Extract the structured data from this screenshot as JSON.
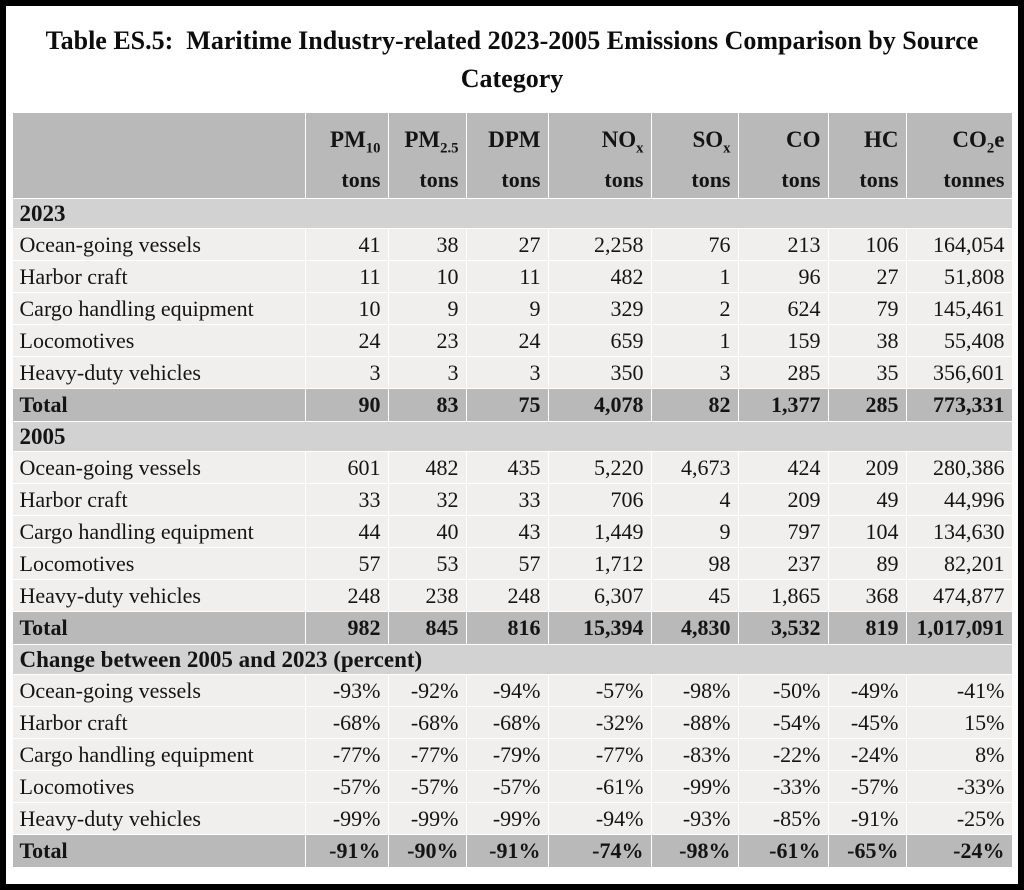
{
  "title": "Table ES.5:  Maritime Industry-related 2023-2005 Emissions Comparison by Source Category",
  "colors": {
    "header_band": "#b9b9b9",
    "section_band": "#d2d2d2",
    "data_band": "#f0efee",
    "total_band": "#b9b9b9",
    "frame_border": "#000000",
    "page_background": "#ffffff",
    "text": "#141414"
  },
  "columns": [
    {
      "main": "PM",
      "sub": "10",
      "suffix": "",
      "unit": "tons"
    },
    {
      "main": "PM",
      "sub": "2.5",
      "suffix": "",
      "unit": "tons"
    },
    {
      "main": "DPM",
      "sub": "",
      "suffix": "",
      "unit": "tons"
    },
    {
      "main": "NO",
      "sub": "x",
      "suffix": "",
      "unit": "tons"
    },
    {
      "main": "SO",
      "sub": "x",
      "suffix": "",
      "unit": "tons"
    },
    {
      "main": "CO",
      "sub": "",
      "suffix": "",
      "unit": "tons"
    },
    {
      "main": "HC",
      "sub": "",
      "suffix": "",
      "unit": "tons"
    },
    {
      "main": "CO",
      "sub": "2",
      "suffix": "e",
      "unit": "tonnes"
    }
  ],
  "sections": [
    {
      "header": "2023",
      "rows": [
        {
          "label": "Ocean-going vessels",
          "values": [
            "41",
            "38",
            "27",
            "2,258",
            "76",
            "213",
            "106",
            "164,054"
          ]
        },
        {
          "label": "Harbor craft",
          "values": [
            "11",
            "10",
            "11",
            "482",
            "1",
            "96",
            "27",
            "51,808"
          ]
        },
        {
          "label": "Cargo handling equipment",
          "values": [
            "10",
            "9",
            "9",
            "329",
            "2",
            "624",
            "79",
            "145,461"
          ]
        },
        {
          "label": "Locomotives",
          "values": [
            "24",
            "23",
            "24",
            "659",
            "1",
            "159",
            "38",
            "55,408"
          ]
        },
        {
          "label": "Heavy-duty vehicles",
          "values": [
            "3",
            "3",
            "3",
            "350",
            "3",
            "285",
            "35",
            "356,601"
          ]
        }
      ],
      "total": {
        "label": "Total",
        "values": [
          "90",
          "83",
          "75",
          "4,078",
          "82",
          "1,377",
          "285",
          "773,331"
        ]
      }
    },
    {
      "header": "2005",
      "rows": [
        {
          "label": "Ocean-going vessels",
          "values": [
            "601",
            "482",
            "435",
            "5,220",
            "4,673",
            "424",
            "209",
            "280,386"
          ]
        },
        {
          "label": "Harbor craft",
          "values": [
            "33",
            "32",
            "33",
            "706",
            "4",
            "209",
            "49",
            "44,996"
          ]
        },
        {
          "label": "Cargo handling equipment",
          "values": [
            "44",
            "40",
            "43",
            "1,449",
            "9",
            "797",
            "104",
            "134,630"
          ]
        },
        {
          "label": "Locomotives",
          "values": [
            "57",
            "53",
            "57",
            "1,712",
            "98",
            "237",
            "89",
            "82,201"
          ]
        },
        {
          "label": "Heavy-duty vehicles",
          "values": [
            "248",
            "238",
            "248",
            "6,307",
            "45",
            "1,865",
            "368",
            "474,877"
          ]
        }
      ],
      "total": {
        "label": "Total",
        "values": [
          "982",
          "845",
          "816",
          "15,394",
          "4,830",
          "3,532",
          "819",
          "1,017,091"
        ]
      }
    },
    {
      "header": "Change between 2005 and 2023 (percent)",
      "rows": [
        {
          "label": "Ocean-going vessels",
          "values": [
            "-93%",
            "-92%",
            "-94%",
            "-57%",
            "-98%",
            "-50%",
            "-49%",
            "-41%"
          ]
        },
        {
          "label": "Harbor craft",
          "values": [
            "-68%",
            "-68%",
            "-68%",
            "-32%",
            "-88%",
            "-54%",
            "-45%",
            "15%"
          ]
        },
        {
          "label": "Cargo handling equipment",
          "values": [
            "-77%",
            "-77%",
            "-79%",
            "-77%",
            "-83%",
            "-22%",
            "-24%",
            "8%"
          ]
        },
        {
          "label": "Locomotives",
          "values": [
            "-57%",
            "-57%",
            "-57%",
            "-61%",
            "-99%",
            "-33%",
            "-57%",
            "-33%"
          ]
        },
        {
          "label": "Heavy-duty vehicles",
          "values": [
            "-99%",
            "-99%",
            "-99%",
            "-94%",
            "-93%",
            "-85%",
            "-91%",
            "-25%"
          ]
        }
      ],
      "total": {
        "label": "Total",
        "values": [
          "-91%",
          "-90%",
          "-91%",
          "-74%",
          "-98%",
          "-61%",
          "-65%",
          "-24%"
        ]
      }
    }
  ]
}
